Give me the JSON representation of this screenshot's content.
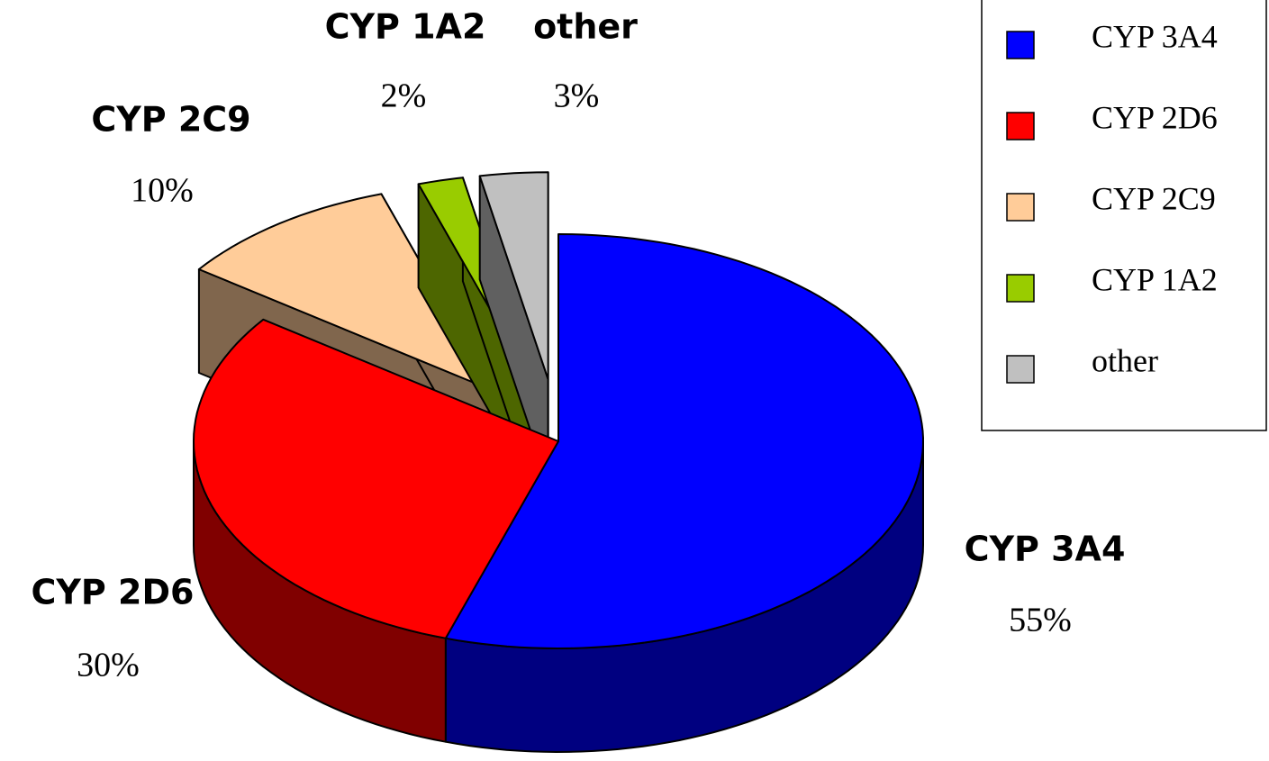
{
  "chart_data": {
    "type": "pie3d",
    "categories": [
      "CYP 3A4",
      "CYP 2D6",
      "CYP 2C9",
      "CYP 1A2",
      "other"
    ],
    "values": [
      55,
      30,
      10,
      2,
      3
    ],
    "value_labels": [
      "55%",
      "30%",
      "10%",
      "2%",
      "3%"
    ],
    "colors": [
      "#0000ff",
      "#ff0000",
      "#ffcc99",
      "#99cc00",
      "#c0c0c0"
    ],
    "legend": "top-right"
  }
}
